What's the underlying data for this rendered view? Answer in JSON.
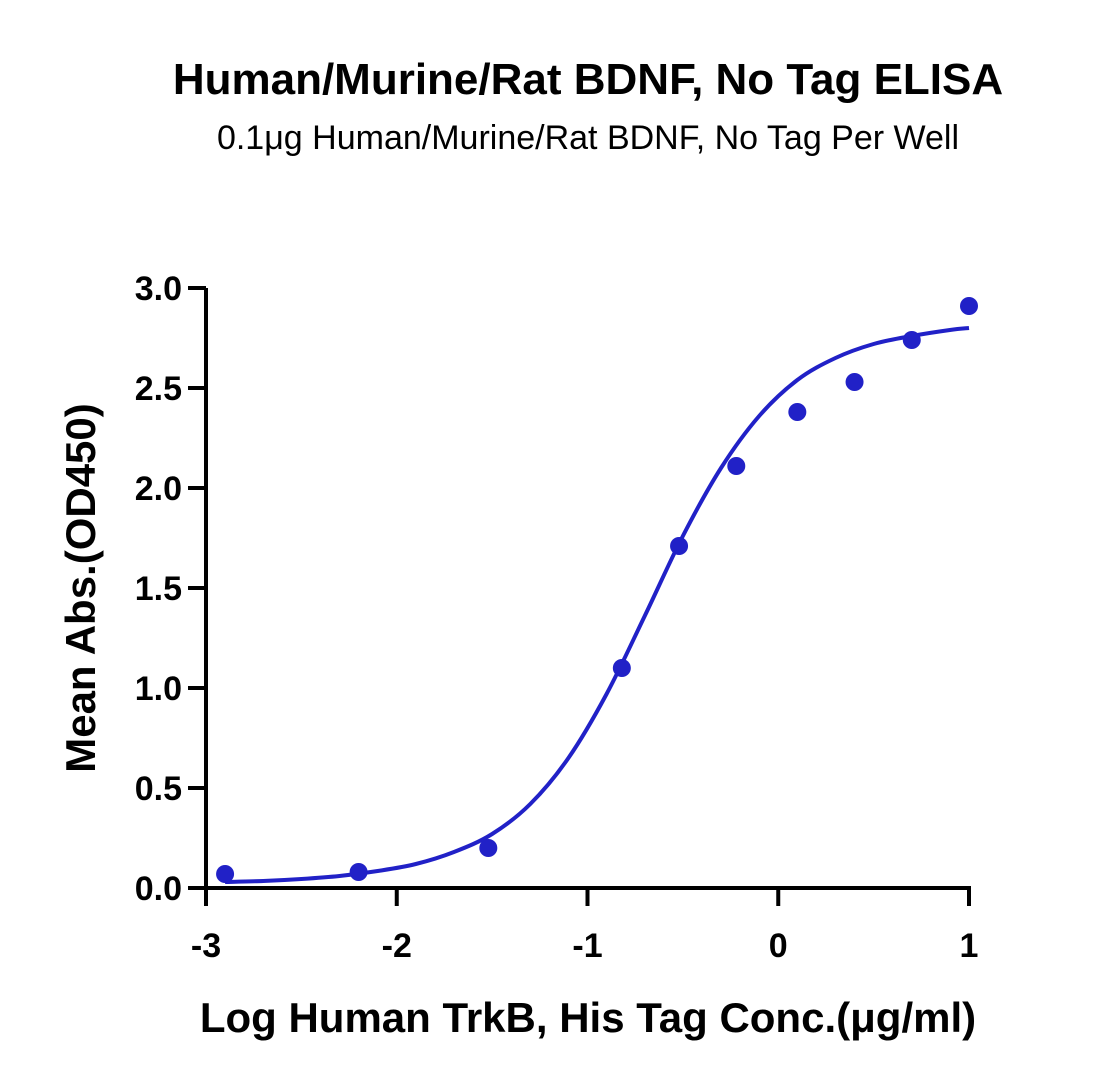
{
  "chart_data": {
    "type": "scatter",
    "title": "Human/Murine/Rat BDNF, No Tag ELISA",
    "subtitle": "0.1μg Human/Murine/Rat BDNF, No Tag Per Well",
    "xlabel": "Log Human TrkB, His Tag Conc.(μg/ml)",
    "ylabel": "Mean Abs.(OD450)",
    "xlim": [
      -3,
      1
    ],
    "ylim": [
      0,
      3
    ],
    "x_ticks": [
      -3,
      -2,
      -1,
      0,
      1
    ],
    "x_tick_labels": [
      "-3",
      "-2",
      "-1",
      "0",
      "1"
    ],
    "y_ticks": [
      0,
      0.5,
      1,
      1.5,
      2,
      2.5,
      3
    ],
    "y_tick_labels": [
      "0.0",
      "0.5",
      "1.0",
      "1.5",
      "2.0",
      "2.5",
      "3.0"
    ],
    "grid": false,
    "legend": "none",
    "color": "#2121c7",
    "series": [
      {
        "x": [
          -2.9,
          -2.2,
          -1.52,
          -0.82,
          -0.52,
          -0.22,
          0.1,
          0.4,
          0.7,
          1.0
        ],
        "y": [
          0.07,
          0.08,
          0.2,
          1.1,
          1.71,
          2.11,
          2.38,
          2.53,
          2.74,
          2.91
        ]
      }
    ],
    "fit_curve": {
      "x": [
        -2.9,
        -2.7,
        -2.5,
        -2.3,
        -2.1,
        -1.9,
        -1.7,
        -1.5,
        -1.3,
        -1.1,
        -0.9,
        -0.7,
        -0.5,
        -0.3,
        -0.1,
        0.1,
        0.3,
        0.5,
        0.7,
        0.9,
        1.0
      ],
      "y": [
        0.03,
        0.035,
        0.045,
        0.06,
        0.085,
        0.12,
        0.18,
        0.27,
        0.42,
        0.65,
        0.97,
        1.36,
        1.76,
        2.1,
        2.36,
        2.54,
        2.65,
        2.72,
        2.76,
        2.79,
        2.8
      ]
    }
  }
}
